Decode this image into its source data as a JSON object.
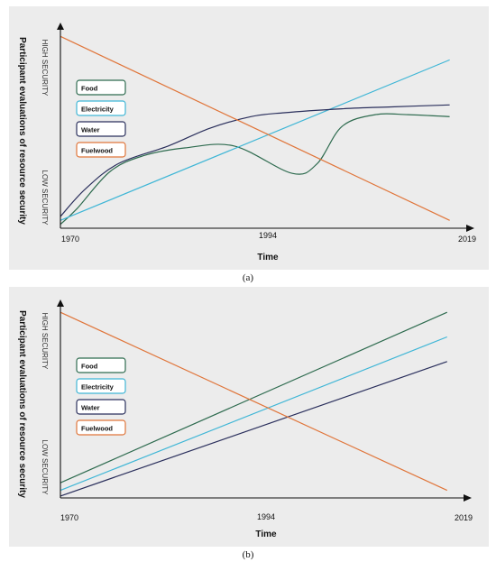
{
  "chart_data": [
    {
      "type": "line",
      "caption": "(a)",
      "xlabel": "Time",
      "ylabel": "Participant evaluations of resource security",
      "ytick_high": "HIGH SECURITY",
      "ytick_low": "LOW SECURITY",
      "x_ticks": [
        "1970",
        "1994",
        "2019"
      ],
      "xlim": [
        1970,
        2019
      ],
      "ylim": [
        0,
        1
      ],
      "series": [
        {
          "name": "Food",
          "color": "#2e6b4f",
          "x": [
            1970,
            1972,
            1976,
            1980,
            1985,
            1991,
            1998,
            2001,
            2004,
            2008,
            2012,
            2017
          ],
          "y": [
            0.02,
            0.1,
            0.29,
            0.37,
            0.41,
            0.42,
            0.28,
            0.33,
            0.52,
            0.58,
            0.58,
            0.57
          ]
        },
        {
          "name": "Electricity",
          "color": "#3fb6d6",
          "x": [
            1970,
            2017
          ],
          "y": [
            0.04,
            0.86
          ]
        },
        {
          "name": "Water",
          "color": "#2a2f5c",
          "x": [
            1970,
            1973,
            1977,
            1983,
            1988,
            1993,
            1997,
            2004,
            2010,
            2017
          ],
          "y": [
            0.06,
            0.2,
            0.33,
            0.42,
            0.51,
            0.57,
            0.59,
            0.61,
            0.62,
            0.63
          ]
        },
        {
          "name": "Fuelwood",
          "color": "#e0753a",
          "x": [
            1970,
            2017
          ],
          "y": [
            0.98,
            0.04
          ]
        }
      ]
    },
    {
      "type": "line",
      "caption": "(b)",
      "xlabel": "Time",
      "ylabel": "Participant evaluations of resource security",
      "ytick_high": "HIGH SECURITY",
      "ytick_low": "LOW SECURITY",
      "x_ticks": [
        "1970",
        "1994",
        "2019"
      ],
      "xlim": [
        1970,
        2019
      ],
      "ylim": [
        0,
        1
      ],
      "series": [
        {
          "name": "Food",
          "color": "#2e6b4f",
          "x": [
            1970,
            2017
          ],
          "y": [
            0.08,
            0.98
          ]
        },
        {
          "name": "Electricity",
          "color": "#3fb6d6",
          "x": [
            1970,
            2017
          ],
          "y": [
            0.04,
            0.85
          ]
        },
        {
          "name": "Water",
          "color": "#2a2f5c",
          "x": [
            1970,
            2017
          ],
          "y": [
            0.01,
            0.72
          ]
        },
        {
          "name": "Fuelwood",
          "color": "#e0753a",
          "x": [
            1970,
            2017
          ],
          "y": [
            0.98,
            0.04
          ]
        }
      ]
    }
  ]
}
